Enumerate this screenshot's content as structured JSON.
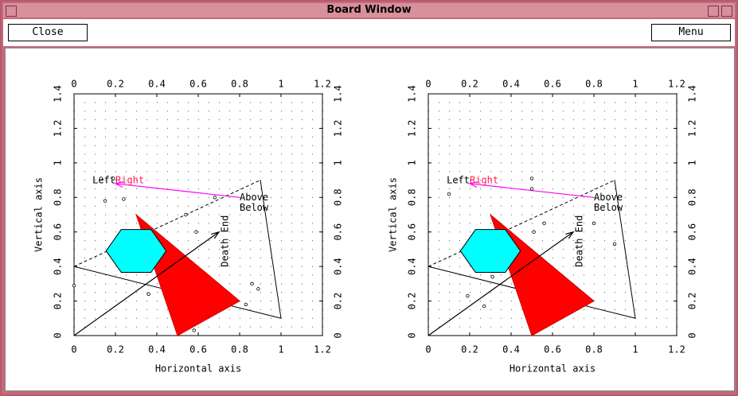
{
  "window": {
    "title": "Board Window",
    "buttons": [
      "Close",
      "Menu"
    ]
  },
  "boards": [
    {
      "xlim": [
        0,
        1.2
      ],
      "ylim": [
        0,
        1.4
      ],
      "xticks": [
        0,
        0.2,
        0.4,
        0.6,
        0.8,
        1,
        1.2
      ],
      "yticks": [
        0,
        0.2,
        0.4,
        0.6,
        0.8,
        1,
        1.2,
        1.4
      ],
      "xlabel": "Horizontal axis",
      "ylabel": "Vertical axis",
      "grid": true,
      "red_polygon": [
        [
          0.3,
          0.7
        ],
        [
          0.5,
          0
        ],
        [
          0.8,
          0.2
        ]
      ],
      "hexagon": [
        [
          0.155,
          0.49
        ],
        [
          0.228,
          0.614
        ],
        [
          0.372,
          0.614
        ],
        [
          0.445,
          0.49
        ],
        [
          0.372,
          0.366
        ],
        [
          0.228,
          0.366
        ]
      ],
      "triangle": [
        [
          0,
          0.4
        ],
        [
          0.9,
          0.9
        ],
        [
          1,
          0.1
        ]
      ],
      "arrow": [
        [
          0,
          0
        ],
        [
          0.7,
          0.6
        ]
      ],
      "arrow_label": "Death End",
      "magenta_arrow": [
        [
          0.8,
          0.8
        ],
        [
          0.2,
          0.88
        ]
      ],
      "labels": {
        "left": "Left",
        "right": "Right",
        "above": "Above",
        "below": "Below"
      },
      "points": [
        [
          0.13,
          0.91
        ],
        [
          0.19,
          0.91
        ],
        [
          0.15,
          0.78
        ],
        [
          0.24,
          0.79
        ],
        [
          0.54,
          0.7
        ],
        [
          0.59,
          0.6
        ],
        [
          0.36,
          0.24
        ],
        [
          0.58,
          0.03
        ],
        [
          0.83,
          0.18
        ],
        [
          0.86,
          0.3
        ],
        [
          0.89,
          0.27
        ],
        [
          0,
          0.29
        ],
        [
          0.68,
          0.8
        ]
      ]
    },
    {
      "xlim": [
        0,
        1.2
      ],
      "ylim": [
        0,
        1.4
      ],
      "xticks": [
        0,
        0.2,
        0.4,
        0.6,
        0.8,
        1,
        1.2
      ],
      "yticks": [
        0,
        0.2,
        0.4,
        0.6,
        0.8,
        1,
        1.2,
        1.4
      ],
      "xlabel": "Horizontal axis",
      "ylabel": "Vertical axis",
      "grid": true,
      "red_polygon": [
        [
          0.3,
          0.7
        ],
        [
          0.5,
          0
        ],
        [
          0.8,
          0.2
        ]
      ],
      "hexagon": [
        [
          0.155,
          0.49
        ],
        [
          0.228,
          0.614
        ],
        [
          0.372,
          0.614
        ],
        [
          0.445,
          0.49
        ],
        [
          0.372,
          0.366
        ],
        [
          0.228,
          0.366
        ]
      ],
      "triangle": [
        [
          0,
          0.4
        ],
        [
          0.9,
          0.9
        ],
        [
          1,
          0.1
        ]
      ],
      "arrow": [
        [
          0,
          0
        ],
        [
          0.7,
          0.6
        ]
      ],
      "arrow_label": "Death End",
      "magenta_arrow": [
        [
          0.8,
          0.8
        ],
        [
          0.2,
          0.88
        ]
      ],
      "labels": {
        "left": "Left",
        "right": "Right",
        "above": "Above",
        "below": "Below"
      },
      "points": [
        [
          0.1,
          0.82
        ],
        [
          0.5,
          0.91
        ],
        [
          0.5,
          0.85
        ],
        [
          0.56,
          0.65
        ],
        [
          0.51,
          0.6
        ],
        [
          0.8,
          0.65
        ],
        [
          0.9,
          0.53
        ],
        [
          0.19,
          0.23
        ],
        [
          0.27,
          0.17
        ],
        [
          0.31,
          0.34
        ]
      ]
    }
  ]
}
